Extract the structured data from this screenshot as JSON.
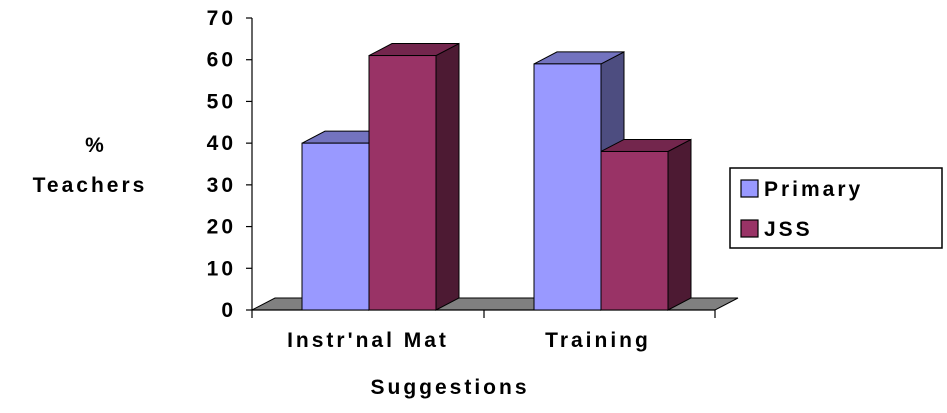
{
  "chart_data": {
    "type": "bar",
    "style": "3d-clustered-column",
    "categories": [
      "Instr'nal Mat",
      "Training"
    ],
    "series": [
      {
        "name": "Primary",
        "values": [
          40,
          59
        ],
        "color": "#9999ff"
      },
      {
        "name": "JSS",
        "values": [
          61,
          38
        ],
        "color": "#993366"
      }
    ],
    "xlabel": "Suggestions",
    "ylabel_lines": [
      "%",
      "Teachers"
    ],
    "ylim": [
      0,
      70
    ],
    "yticks": [
      "0",
      "10",
      "20",
      "30",
      "40",
      "50",
      "60",
      "70"
    ],
    "grid": false,
    "legend_position": "right",
    "floor_color": "#808080"
  }
}
